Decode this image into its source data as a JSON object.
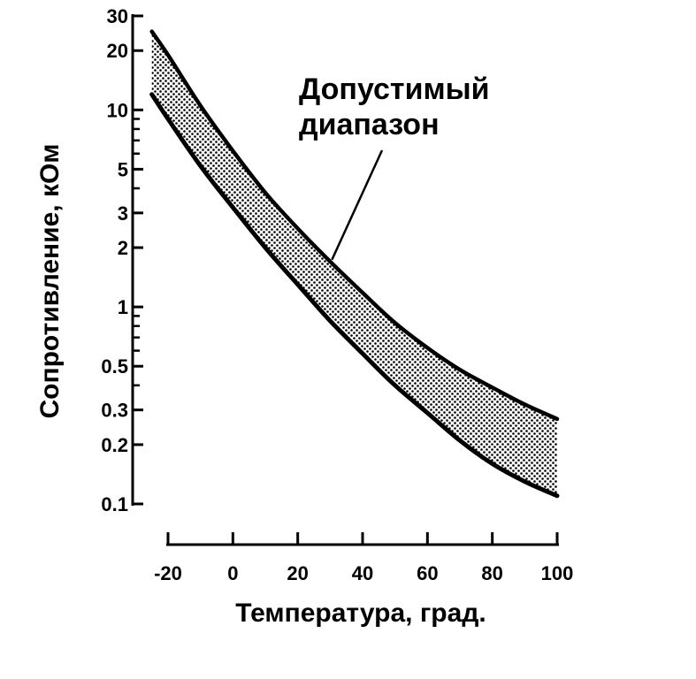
{
  "chart_data": {
    "type": "area",
    "ylabel": "Сопротивление, кОм",
    "xlabel": "Температура, град.",
    "x_ticks": [
      -20,
      0,
      20,
      40,
      60,
      80,
      100
    ],
    "x_tick_labels": [
      "-20",
      "0",
      "20",
      "40",
      "60",
      "80",
      "100"
    ],
    "y_scale": "log",
    "y_ticks": [
      0.1,
      0.2,
      0.3,
      0.5,
      1,
      2,
      3,
      5,
      10,
      20,
      30
    ],
    "y_tick_labels": [
      "0.1",
      "0.2",
      "0.3",
      "0.5",
      "1",
      "2",
      "3",
      "5",
      "10",
      "20",
      "30"
    ],
    "y_minor_ticks": [
      0.1,
      0.2,
      0.3,
      0.4,
      0.5,
      0.6,
      0.7,
      0.8,
      0.9,
      1,
      2,
      3,
      4,
      5,
      6,
      7,
      8,
      9,
      10,
      20,
      30
    ],
    "xlim": [
      -20,
      100
    ],
    "ylim": [
      0.1,
      30
    ],
    "series": [
      {
        "x": [
          -25,
          -20,
          -10,
          0,
          10,
          20,
          30,
          40,
          50,
          60,
          70,
          80,
          90,
          100
        ],
        "values": [
          25,
          19,
          10.5,
          6.2,
          3.8,
          2.5,
          1.7,
          1.18,
          0.83,
          0.62,
          0.48,
          0.39,
          0.32,
          0.27
        ]
      },
      {
        "x": [
          -25,
          -20,
          -10,
          0,
          10,
          20,
          30,
          40,
          50,
          60,
          70,
          80,
          90,
          100
        ],
        "values": [
          12,
          9,
          5.2,
          3.2,
          2.0,
          1.3,
          0.85,
          0.58,
          0.4,
          0.29,
          0.21,
          0.16,
          0.13,
          0.11
        ]
      }
    ],
    "annotations": [
      {
        "lines": [
          "Допустимый",
          "диапазон"
        ],
        "points_to": {
          "x": 30,
          "y": 1.7
        }
      }
    ]
  }
}
